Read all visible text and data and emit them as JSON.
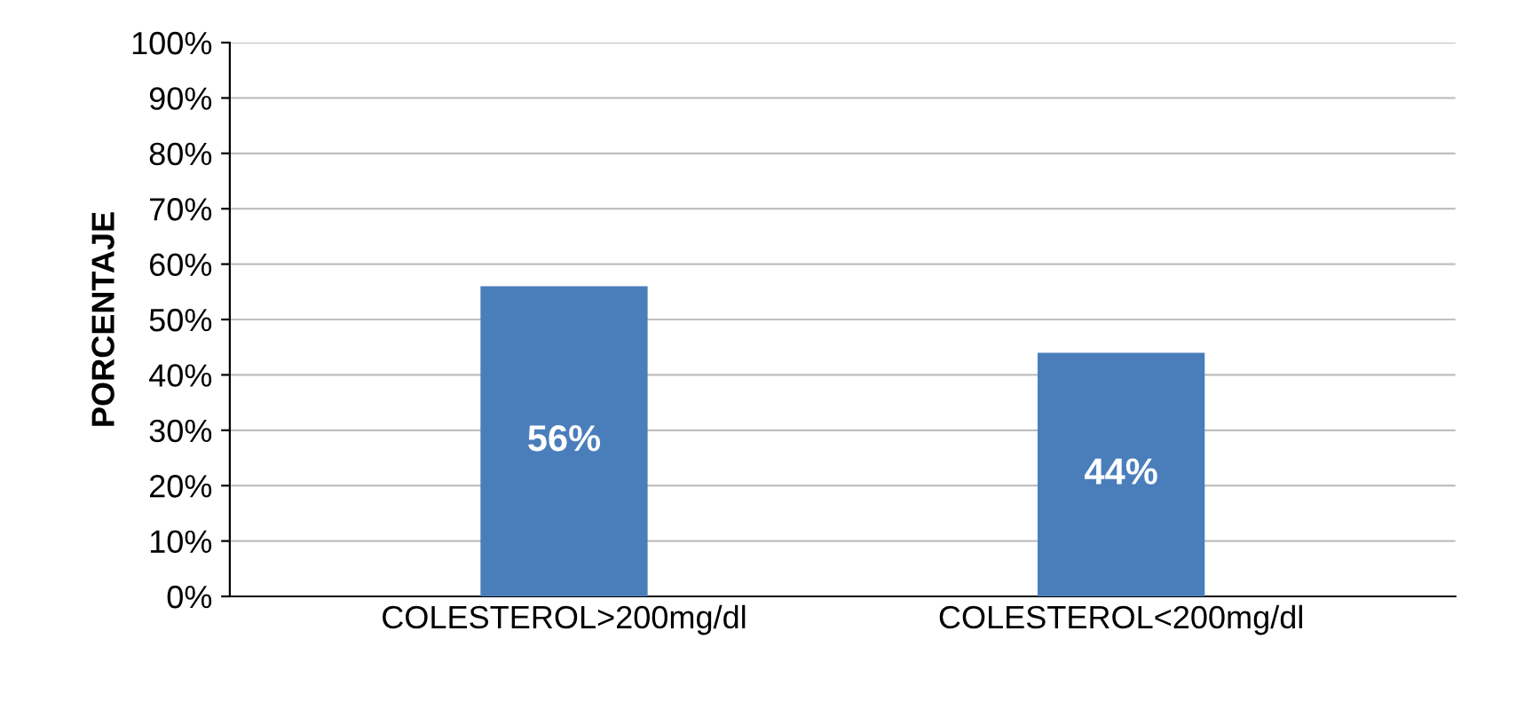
{
  "chart_data": {
    "type": "bar",
    "ylabel": "PORCENTAJE",
    "categories": [
      "COLESTEROL>200mg/dl",
      "COLESTEROL<200mg/dl"
    ],
    "values": [
      56,
      44
    ],
    "value_labels": [
      "56%",
      "44%"
    ],
    "color": "#4a7ebb",
    "ylim": [
      0,
      100
    ],
    "yticks": [
      {
        "value": 0,
        "label": "0%"
      },
      {
        "value": 10,
        "label": "10%"
      },
      {
        "value": 20,
        "label": "20%"
      },
      {
        "value": 30,
        "label": "30%"
      },
      {
        "value": 40,
        "label": "40%"
      },
      {
        "value": 50,
        "label": "50%"
      },
      {
        "value": 60,
        "label": "60%"
      },
      {
        "value": 70,
        "label": "70%"
      },
      {
        "value": 80,
        "label": "80%"
      },
      {
        "value": 90,
        "label": "90%"
      },
      {
        "value": 100,
        "label": "100%"
      }
    ],
    "grid": "y"
  }
}
